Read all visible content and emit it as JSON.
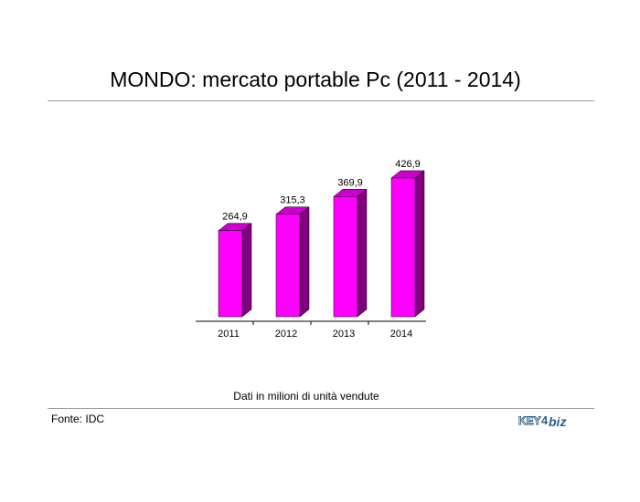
{
  "header": {
    "title": "MONDO: mercato portable Pc (2011 - 2014)"
  },
  "footer": {
    "note": "Dati in milioni di unità vendute",
    "source": "Fonte: IDC",
    "logo_text": "KEY4biz"
  },
  "colors": {
    "bar_front": "#ff00ff",
    "bar_top": "#cc00cc",
    "bar_side": "#800080"
  },
  "chart_data": {
    "type": "bar",
    "title": "MONDO: mercato portable Pc (2011 - 2014)",
    "categories": [
      "2011",
      "2012",
      "2013",
      "2014"
    ],
    "values": [
      264.9,
      315.3,
      369.9,
      426.9
    ],
    "value_labels": [
      "264,9",
      "315,3",
      "369,9",
      "426,9"
    ],
    "xlabel": "",
    "ylabel": "",
    "ylim": [
      0,
      450
    ],
    "grid": false,
    "legend": "none"
  }
}
